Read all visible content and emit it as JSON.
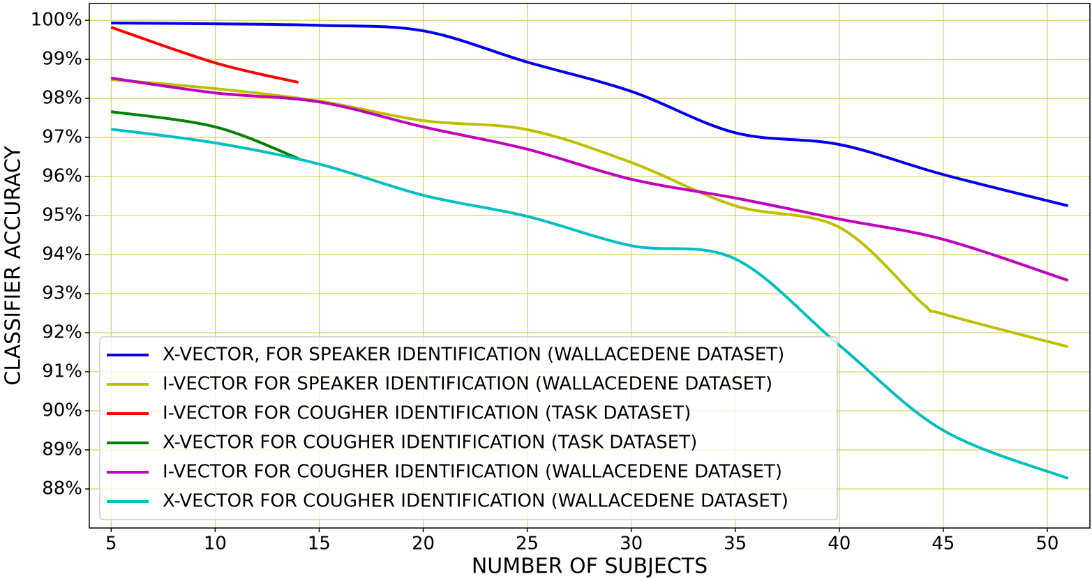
{
  "chart_data": {
    "type": "line",
    "xlabel": "NUMBER OF SUBJECTS",
    "ylabel": "CLASSIFIER ACCURACY",
    "xlim": [
      3.95,
      52.05
    ],
    "ylim": [
      87,
      100.43
    ],
    "xticks": [
      5,
      10,
      15,
      20,
      25,
      30,
      35,
      40,
      45,
      50
    ],
    "yticks": [
      {
        "value": 88,
        "label": "88%"
      },
      {
        "value": 89,
        "label": "89%"
      },
      {
        "value": 90,
        "label": "90%"
      },
      {
        "value": 91,
        "label": "91%"
      },
      {
        "value": 92,
        "label": "92%"
      },
      {
        "value": 93,
        "label": "93%"
      },
      {
        "value": 94,
        "label": "94%"
      },
      {
        "value": 95,
        "label": "95%"
      },
      {
        "value": 96,
        "label": "96%"
      },
      {
        "value": 97,
        "label": "97%"
      },
      {
        "value": 98,
        "label": "98%"
      },
      {
        "value": 99,
        "label": "99%"
      },
      {
        "value": 100,
        "label": "100%"
      }
    ],
    "grid": true,
    "grid_color": "#c8c832",
    "legend": "lower left",
    "series": [
      {
        "name": "X-VECTOR, FOR SPEAKER IDENTIFICATION (WALLACEDENE DATASET)",
        "color": "#0000ee",
        "x": [
          5,
          10,
          15,
          20,
          25,
          30,
          35,
          40,
          45,
          51
        ],
        "values": [
          99.93,
          99.91,
          99.87,
          99.73,
          98.93,
          98.18,
          97.12,
          96.82,
          96.05,
          95.25
        ]
      },
      {
        "name": "I-VECTOR FOR SPEAKER IDENTIFICATION (WALLACEDENE DATASET)",
        "color": "#bfbf00",
        "x": [
          5,
          10,
          15,
          20,
          25,
          30,
          35,
          40,
          44,
          45,
          51
        ],
        "values": [
          98.48,
          98.25,
          97.93,
          97.43,
          97.2,
          96.36,
          95.25,
          94.7,
          92.75,
          92.48,
          91.64
        ]
      },
      {
        "name": "I-VECTOR FOR COUGHER IDENTIFICATION (TASK DATASET)",
        "color": "#ff0000",
        "x": [
          5,
          10,
          14
        ],
        "values": [
          99.82,
          98.91,
          98.41
        ]
      },
      {
        "name": "X-VECTOR FOR COUGHER IDENTIFICATION (TASK DATASET)",
        "color": "#008000",
        "x": [
          5,
          10,
          14
        ],
        "values": [
          97.66,
          97.27,
          96.46
        ]
      },
      {
        "name": "I-VECTOR FOR COUGHER IDENTIFICATION (WALLACEDENE DATASET)",
        "color": "#bf00bf",
        "x": [
          5,
          10,
          15,
          20,
          25,
          30,
          35,
          40,
          45,
          51
        ],
        "values": [
          98.52,
          98.14,
          97.91,
          97.27,
          96.7,
          95.93,
          95.45,
          94.91,
          94.39,
          93.34
        ]
      },
      {
        "name": "X-VECTOR FOR COUGHER IDENTIFICATION (WALLACEDENE DATASET)",
        "color": "#00bfbf",
        "x": [
          5,
          10,
          15,
          20,
          25,
          30,
          35,
          40,
          45,
          51
        ],
        "values": [
          97.21,
          96.86,
          96.32,
          95.52,
          94.98,
          94.23,
          93.89,
          91.68,
          89.5,
          88.27
        ]
      }
    ]
  }
}
